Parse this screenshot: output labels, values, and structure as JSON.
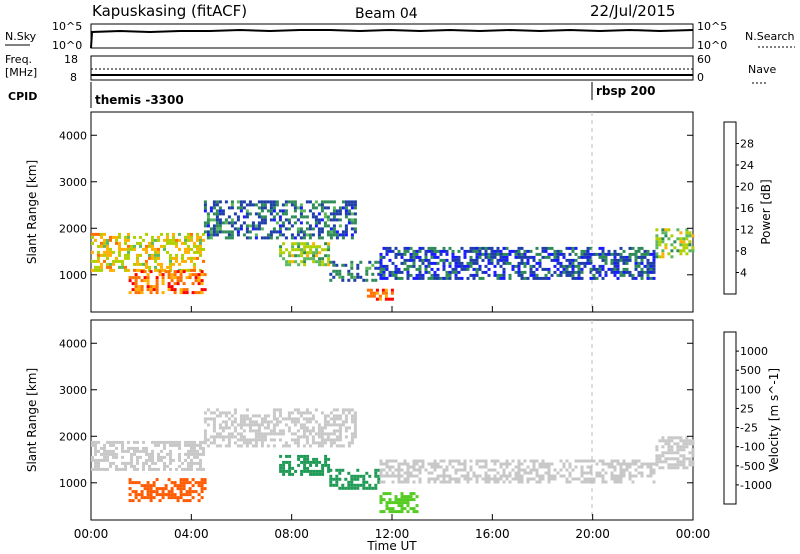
{
  "header": {
    "title": "Kapuskasing (fitACF)",
    "beam": "Beam 04",
    "date": "22/Jul/2015"
  },
  "nsky_panel": {
    "left_label": "N.Sky",
    "left_ticks": [
      "10^5",
      "10^0"
    ],
    "right_label": "N.Search",
    "right_ticks": [
      "10^5",
      "10^0"
    ]
  },
  "freq_panel": {
    "left_label_1": "Freq.",
    "left_label_2": "[MHz]",
    "left_ticks": [
      "18",
      "8"
    ],
    "right_label": "Nave",
    "right_ticks": [
      "60",
      "0"
    ]
  },
  "cpid": {
    "label": "CPID",
    "segments": [
      {
        "name": "themis -3300",
        "start_hour": 0
      },
      {
        "name": "rbsp 200",
        "start_hour": 20
      }
    ]
  },
  "colors": {
    "power_scale": [
      "#1a1aff",
      "#1f3fa8",
      "#2e8b57",
      "#5cb85c",
      "#b0d000",
      "#ffb000",
      "#ff7000",
      "#ff0000"
    ],
    "velocity_scale": [
      "#ff0000",
      "#ff5a00",
      "#ffa000",
      "#c8c8c8",
      "#c8c8c8",
      "#55cc22",
      "#1f9a55",
      "#1f66aa",
      "#2222dd"
    ],
    "ground_scatter": "#c8c8c8"
  },
  "chart_data": [
    {
      "type": "heatmap",
      "name": "power",
      "ylabel": "Slant Range [km]",
      "yticks": [
        "1000",
        "2000",
        "3000",
        "4000"
      ],
      "ylim": [
        200,
        4500
      ],
      "xlim": [
        0,
        24
      ],
      "colorbar": {
        "label": "Power [dB]",
        "ticks": [
          "4",
          "8",
          "12",
          "16",
          "20",
          "24",
          "28"
        ]
      },
      "regions": [
        {
          "x0": 0.0,
          "x1": 4.5,
          "y0": 1100,
          "y1": 1900,
          "value": 20
        },
        {
          "x0": 1.5,
          "x1": 4.5,
          "y0": 600,
          "y1": 1100,
          "value": 26
        },
        {
          "x0": 4.5,
          "x1": 10.5,
          "y0": 1800,
          "y1": 2600,
          "value": 8
        },
        {
          "x0": 7.5,
          "x1": 9.5,
          "y0": 1200,
          "y1": 1700,
          "value": 16
        },
        {
          "x0": 9.5,
          "x1": 11.5,
          "y0": 900,
          "y1": 1300,
          "value": 8
        },
        {
          "x0": 11.0,
          "x1": 12.0,
          "y0": 500,
          "y1": 700,
          "value": 28
        },
        {
          "x0": 11.5,
          "x1": 22.5,
          "y0": 900,
          "y1": 1600,
          "value": 6
        },
        {
          "x0": 22.5,
          "x1": 24.0,
          "y0": 1400,
          "y1": 2000,
          "value": 16
        }
      ]
    },
    {
      "type": "heatmap",
      "name": "velocity",
      "ylabel": "Slant Range [km]",
      "yticks": [
        "1000",
        "2000",
        "3000",
        "4000"
      ],
      "ylim": [
        200,
        4500
      ],
      "xlim": [
        0,
        24
      ],
      "colorbar": {
        "label": "Velocity [m s^-1]",
        "ticks": [
          "1000",
          "500",
          "100",
          "25",
          "-25",
          "-100",
          "-500",
          "-1000"
        ]
      },
      "regions": [
        {
          "x0": 0.0,
          "x1": 4.5,
          "y0": 1300,
          "y1": 1900,
          "value": 0
        },
        {
          "x0": 1.5,
          "x1": 4.5,
          "y0": 600,
          "y1": 1100,
          "value": -300
        },
        {
          "x0": 4.5,
          "x1": 10.5,
          "y0": 1800,
          "y1": 2600,
          "value": 0
        },
        {
          "x0": 7.5,
          "x1": 9.5,
          "y0": 1200,
          "y1": 1600,
          "value": 150
        },
        {
          "x0": 9.5,
          "x1": 11.5,
          "y0": 900,
          "y1": 1300,
          "value": 120
        },
        {
          "x0": 11.5,
          "x1": 13.0,
          "y0": 400,
          "y1": 800,
          "value": 80
        },
        {
          "x0": 11.5,
          "x1": 22.5,
          "y0": 1000,
          "y1": 1500,
          "value": 0
        },
        {
          "x0": 22.5,
          "x1": 24.0,
          "y0": 1300,
          "y1": 2000,
          "value": 0
        }
      ]
    }
  ],
  "x_axis": {
    "ticks": [
      "00:00",
      "04:00",
      "08:00",
      "12:00",
      "16:00",
      "20:00",
      "00:00"
    ],
    "label": "Time UT"
  }
}
